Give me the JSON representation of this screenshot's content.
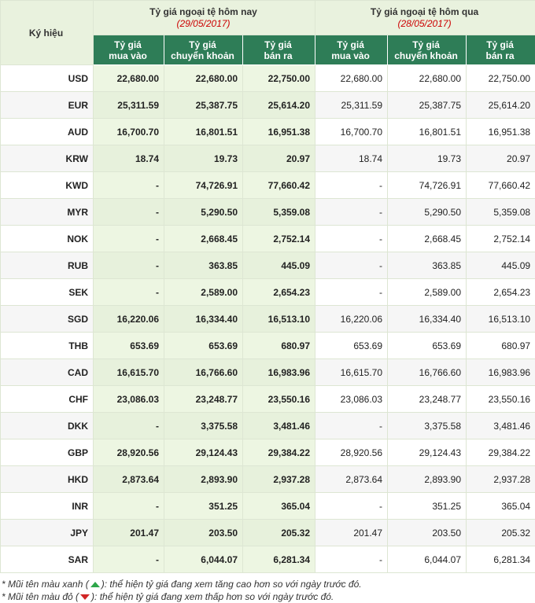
{
  "header": {
    "symbol_label": "Ký hiệu",
    "today_label": "Tỷ giá ngoại tệ hôm nay",
    "today_date": "(29/05/2017)",
    "yesterday_label": "Tỷ giá ngoại tệ hôm qua",
    "yesterday_date": "(28/05/2017)",
    "cols": [
      [
        "Tỷ giá",
        "mua vào"
      ],
      [
        "Tỷ giá",
        "chuyển khoản"
      ],
      [
        "Tỷ giá",
        "bán ra"
      ]
    ]
  },
  "rows": [
    {
      "sym": "USD",
      "today": [
        "22,680.00",
        "22,680.00",
        "22,750.00"
      ],
      "yesterday": [
        "22,680.00",
        "22,680.00",
        "22,750.00"
      ]
    },
    {
      "sym": "EUR",
      "today": [
        "25,311.59",
        "25,387.75",
        "25,614.20"
      ],
      "yesterday": [
        "25,311.59",
        "25,387.75",
        "25,614.20"
      ]
    },
    {
      "sym": "AUD",
      "today": [
        "16,700.70",
        "16,801.51",
        "16,951.38"
      ],
      "yesterday": [
        "16,700.70",
        "16,801.51",
        "16,951.38"
      ]
    },
    {
      "sym": "KRW",
      "today": [
        "18.74",
        "19.73",
        "20.97"
      ],
      "yesterday": [
        "18.74",
        "19.73",
        "20.97"
      ]
    },
    {
      "sym": "KWD",
      "today": [
        "-",
        "74,726.91",
        "77,660.42"
      ],
      "yesterday": [
        "-",
        "74,726.91",
        "77,660.42"
      ]
    },
    {
      "sym": "MYR",
      "today": [
        "-",
        "5,290.50",
        "5,359.08"
      ],
      "yesterday": [
        "-",
        "5,290.50",
        "5,359.08"
      ]
    },
    {
      "sym": "NOK",
      "today": [
        "-",
        "2,668.45",
        "2,752.14"
      ],
      "yesterday": [
        "-",
        "2,668.45",
        "2,752.14"
      ]
    },
    {
      "sym": "RUB",
      "today": [
        "-",
        "363.85",
        "445.09"
      ],
      "yesterday": [
        "-",
        "363.85",
        "445.09"
      ]
    },
    {
      "sym": "SEK",
      "today": [
        "-",
        "2,589.00",
        "2,654.23"
      ],
      "yesterday": [
        "-",
        "2,589.00",
        "2,654.23"
      ]
    },
    {
      "sym": "SGD",
      "today": [
        "16,220.06",
        "16,334.40",
        "16,513.10"
      ],
      "yesterday": [
        "16,220.06",
        "16,334.40",
        "16,513.10"
      ]
    },
    {
      "sym": "THB",
      "today": [
        "653.69",
        "653.69",
        "680.97"
      ],
      "yesterday": [
        "653.69",
        "653.69",
        "680.97"
      ]
    },
    {
      "sym": "CAD",
      "today": [
        "16,615.70",
        "16,766.60",
        "16,983.96"
      ],
      "yesterday": [
        "16,615.70",
        "16,766.60",
        "16,983.96"
      ]
    },
    {
      "sym": "CHF",
      "today": [
        "23,086.03",
        "23,248.77",
        "23,550.16"
      ],
      "yesterday": [
        "23,086.03",
        "23,248.77",
        "23,550.16"
      ]
    },
    {
      "sym": "DKK",
      "today": [
        "-",
        "3,375.58",
        "3,481.46"
      ],
      "yesterday": [
        "-",
        "3,375.58",
        "3,481.46"
      ]
    },
    {
      "sym": "GBP",
      "today": [
        "28,920.56",
        "29,124.43",
        "29,384.22"
      ],
      "yesterday": [
        "28,920.56",
        "29,124.43",
        "29,384.22"
      ]
    },
    {
      "sym": "HKD",
      "today": [
        "2,873.64",
        "2,893.90",
        "2,937.28"
      ],
      "yesterday": [
        "2,873.64",
        "2,893.90",
        "2,937.28"
      ]
    },
    {
      "sym": "INR",
      "today": [
        "-",
        "351.25",
        "365.04"
      ],
      "yesterday": [
        "-",
        "351.25",
        "365.04"
      ]
    },
    {
      "sym": "JPY",
      "today": [
        "201.47",
        "203.50",
        "205.32"
      ],
      "yesterday": [
        "201.47",
        "203.50",
        "205.32"
      ]
    },
    {
      "sym": "SAR",
      "today": [
        "-",
        "6,044.07",
        "6,281.34"
      ],
      "yesterday": [
        "-",
        "6,044.07",
        "6,281.34"
      ]
    }
  ],
  "notes": {
    "green_prefix": "* Mũi tên màu xanh (",
    "green_suffix": "): thể hiện tỷ giá đang xem tăng cao hơn so với ngày trước đó.",
    "red_prefix": "* Mũi tên màu đỏ (",
    "red_suffix": "): thể hiện tỷ giá đang xem thấp hơn so với ngày trước đó."
  },
  "icons": {
    "up": "green-up-arrow-icon",
    "down": "red-down-arrow-icon"
  },
  "colors": {
    "header_bg": "#e9f2de",
    "subheader_bg": "#2e7d57",
    "date_red": "#cc0000",
    "arrow_up": "#2ea64a",
    "arrow_down": "#d12626"
  }
}
